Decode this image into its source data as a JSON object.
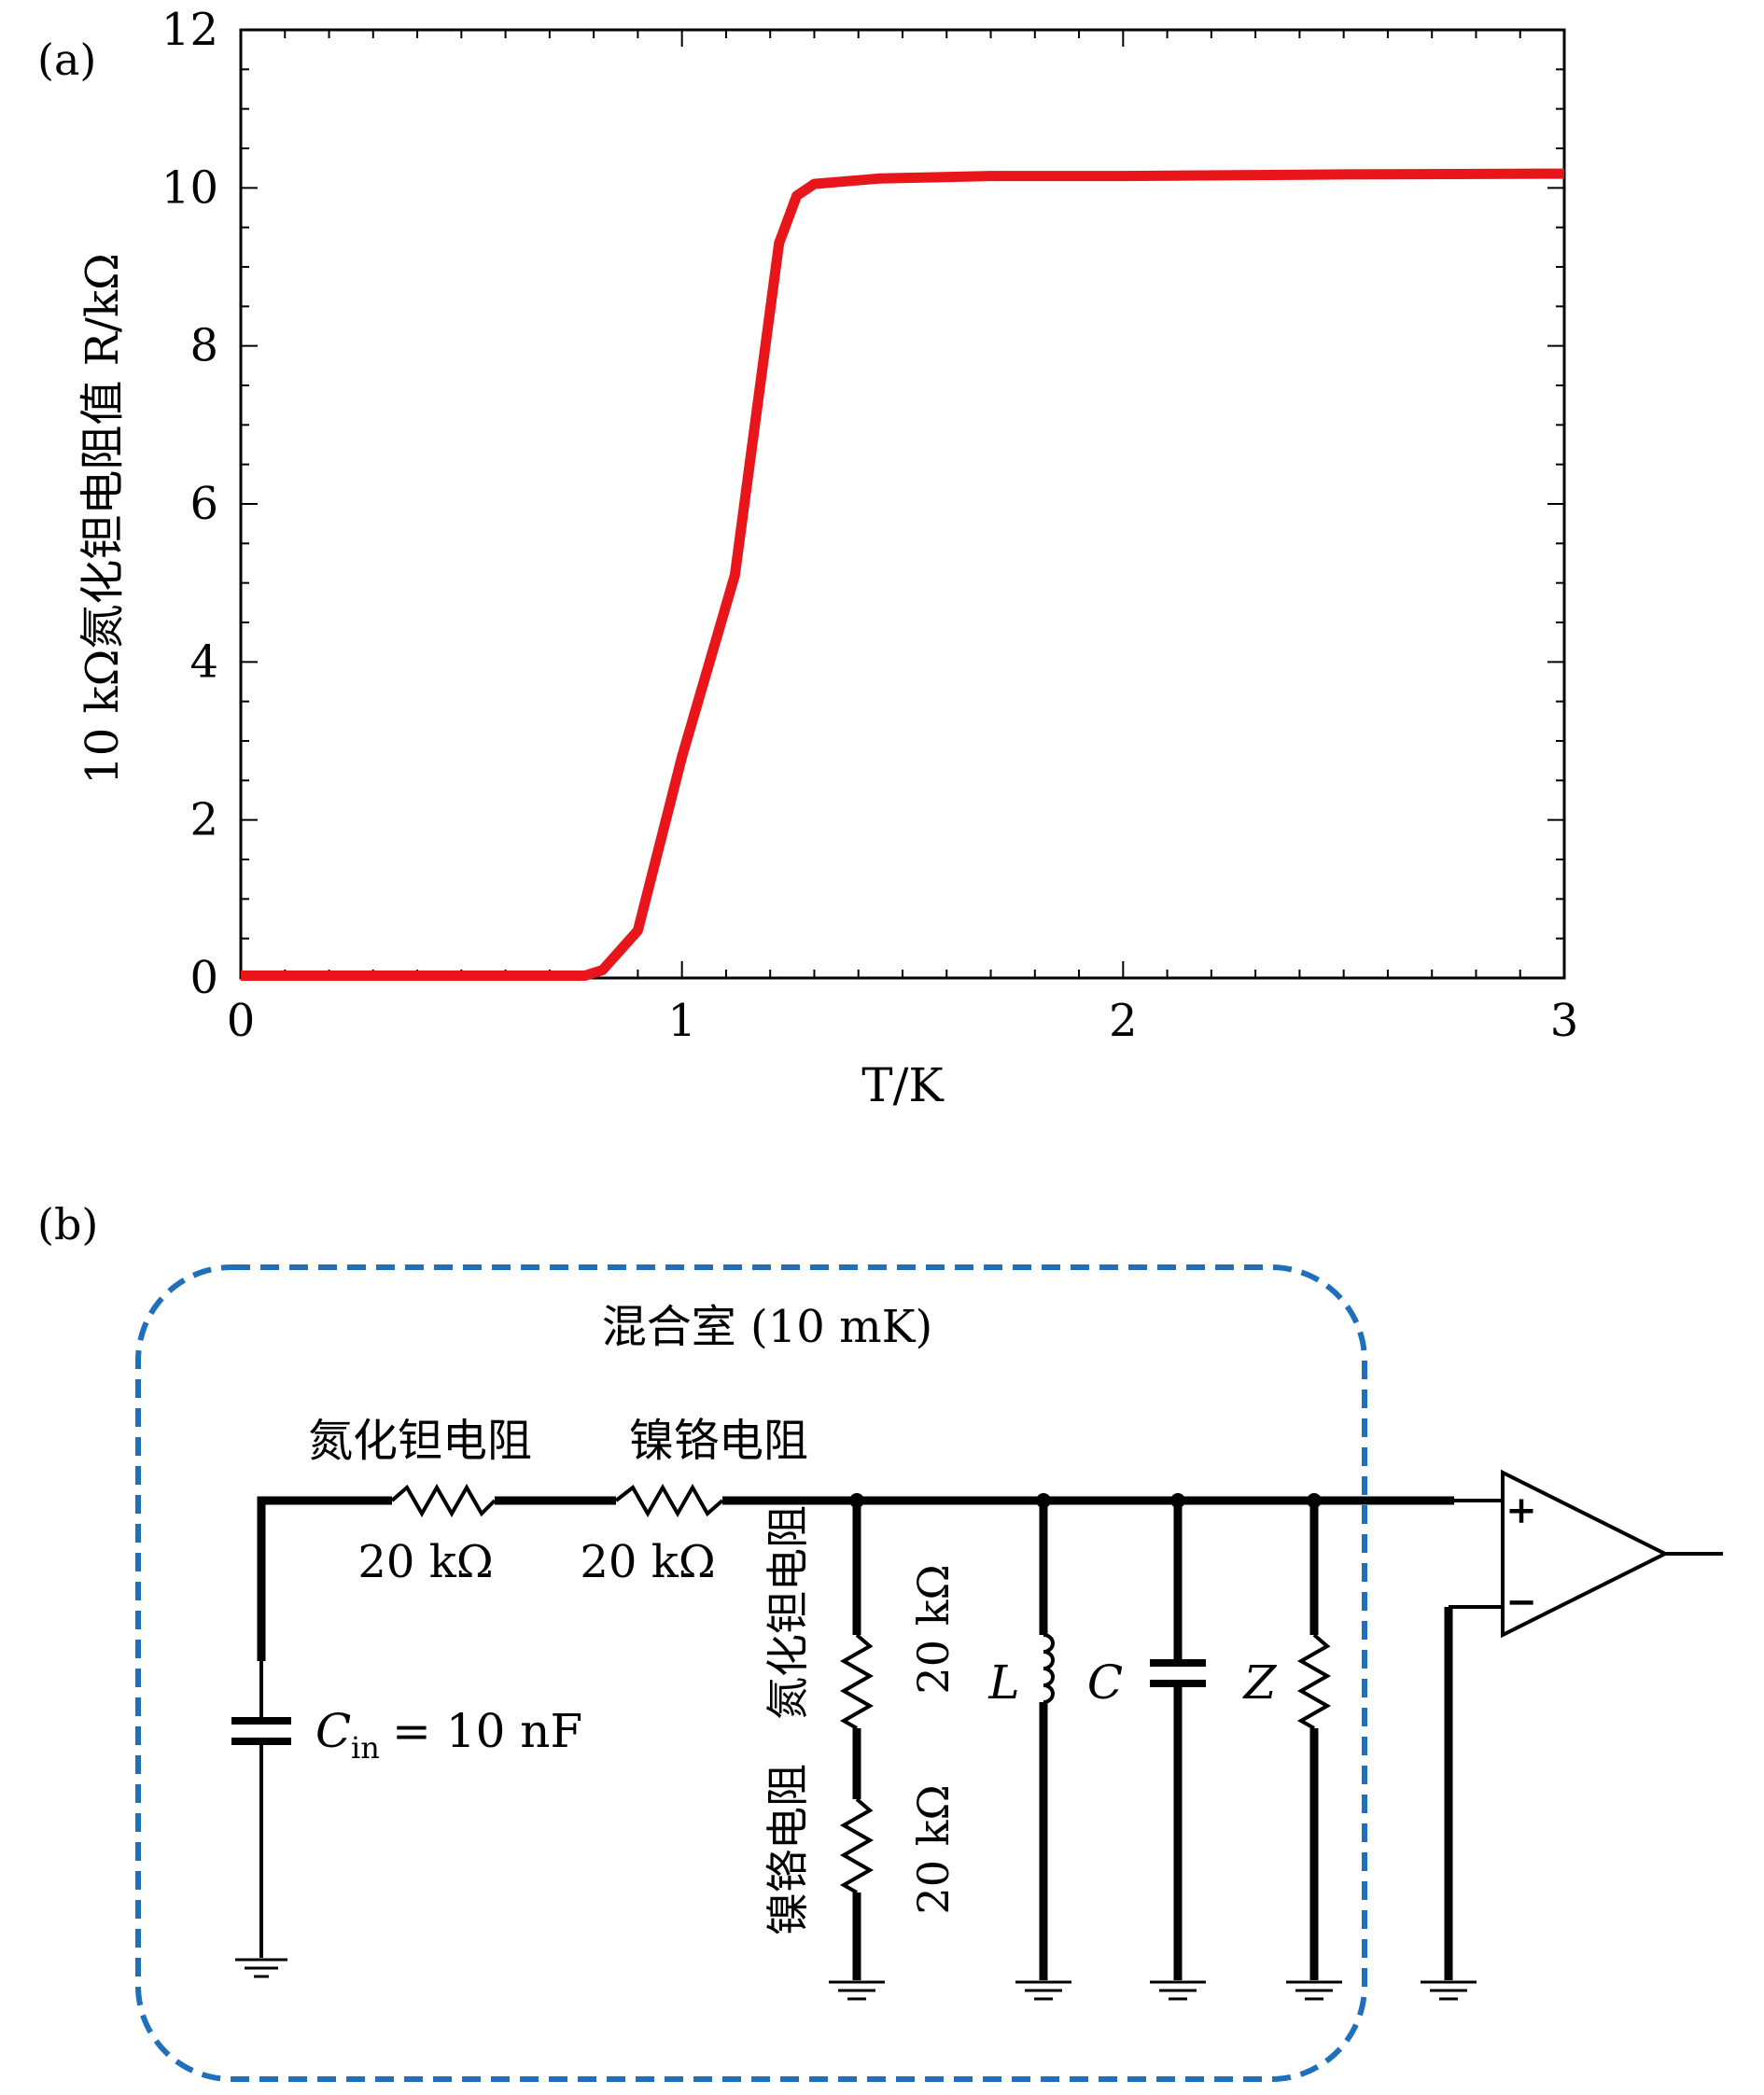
{
  "chart_data": {
    "type": "line",
    "panel_label": "(a)",
    "xlabel": "T/K",
    "ylabel": "10 kΩ氮化钽电阻值 R/kΩ",
    "xlim": [
      0,
      3
    ],
    "ylim": [
      0,
      12
    ],
    "x_ticks": [
      "0",
      "1",
      "2",
      "3"
    ],
    "y_ticks": [
      "0",
      "2",
      "4",
      "6",
      "8",
      "10",
      "12"
    ],
    "grid": false,
    "series": [
      {
        "color": "#e8151b",
        "x": [
          0,
          0.5,
          0.78,
          0.82,
          0.9,
          1.0,
          1.12,
          1.22,
          1.26,
          1.3,
          1.45,
          1.7,
          2.0,
          2.5,
          3.0
        ],
        "y": [
          0.03,
          0.03,
          0.03,
          0.1,
          0.6,
          2.8,
          5.1,
          9.3,
          9.9,
          10.05,
          10.12,
          10.15,
          10.15,
          10.17,
          10.18
        ]
      }
    ]
  },
  "circuit": {
    "panel_label": "(b)",
    "box_color": "#1f6fba",
    "box_title": "混合室 (10 mK)",
    "series_resistor_1": {
      "name": "氮化钽电阻",
      "value": "20 kΩ"
    },
    "series_resistor_2": {
      "name": "镍铬电阻",
      "value": "20 kΩ"
    },
    "input_capacitor": {
      "name": "C",
      "subscript": "in",
      "equals": "= 10 nF"
    },
    "shunt_upper": {
      "name": "氮化钽电阻",
      "value": "20 kΩ"
    },
    "shunt_lower": {
      "name": "镍铬电阻",
      "value": "20 kΩ"
    },
    "load_L": "L",
    "load_C": "C",
    "load_Z": "Z",
    "amp_plus": "+",
    "amp_minus": "−"
  }
}
